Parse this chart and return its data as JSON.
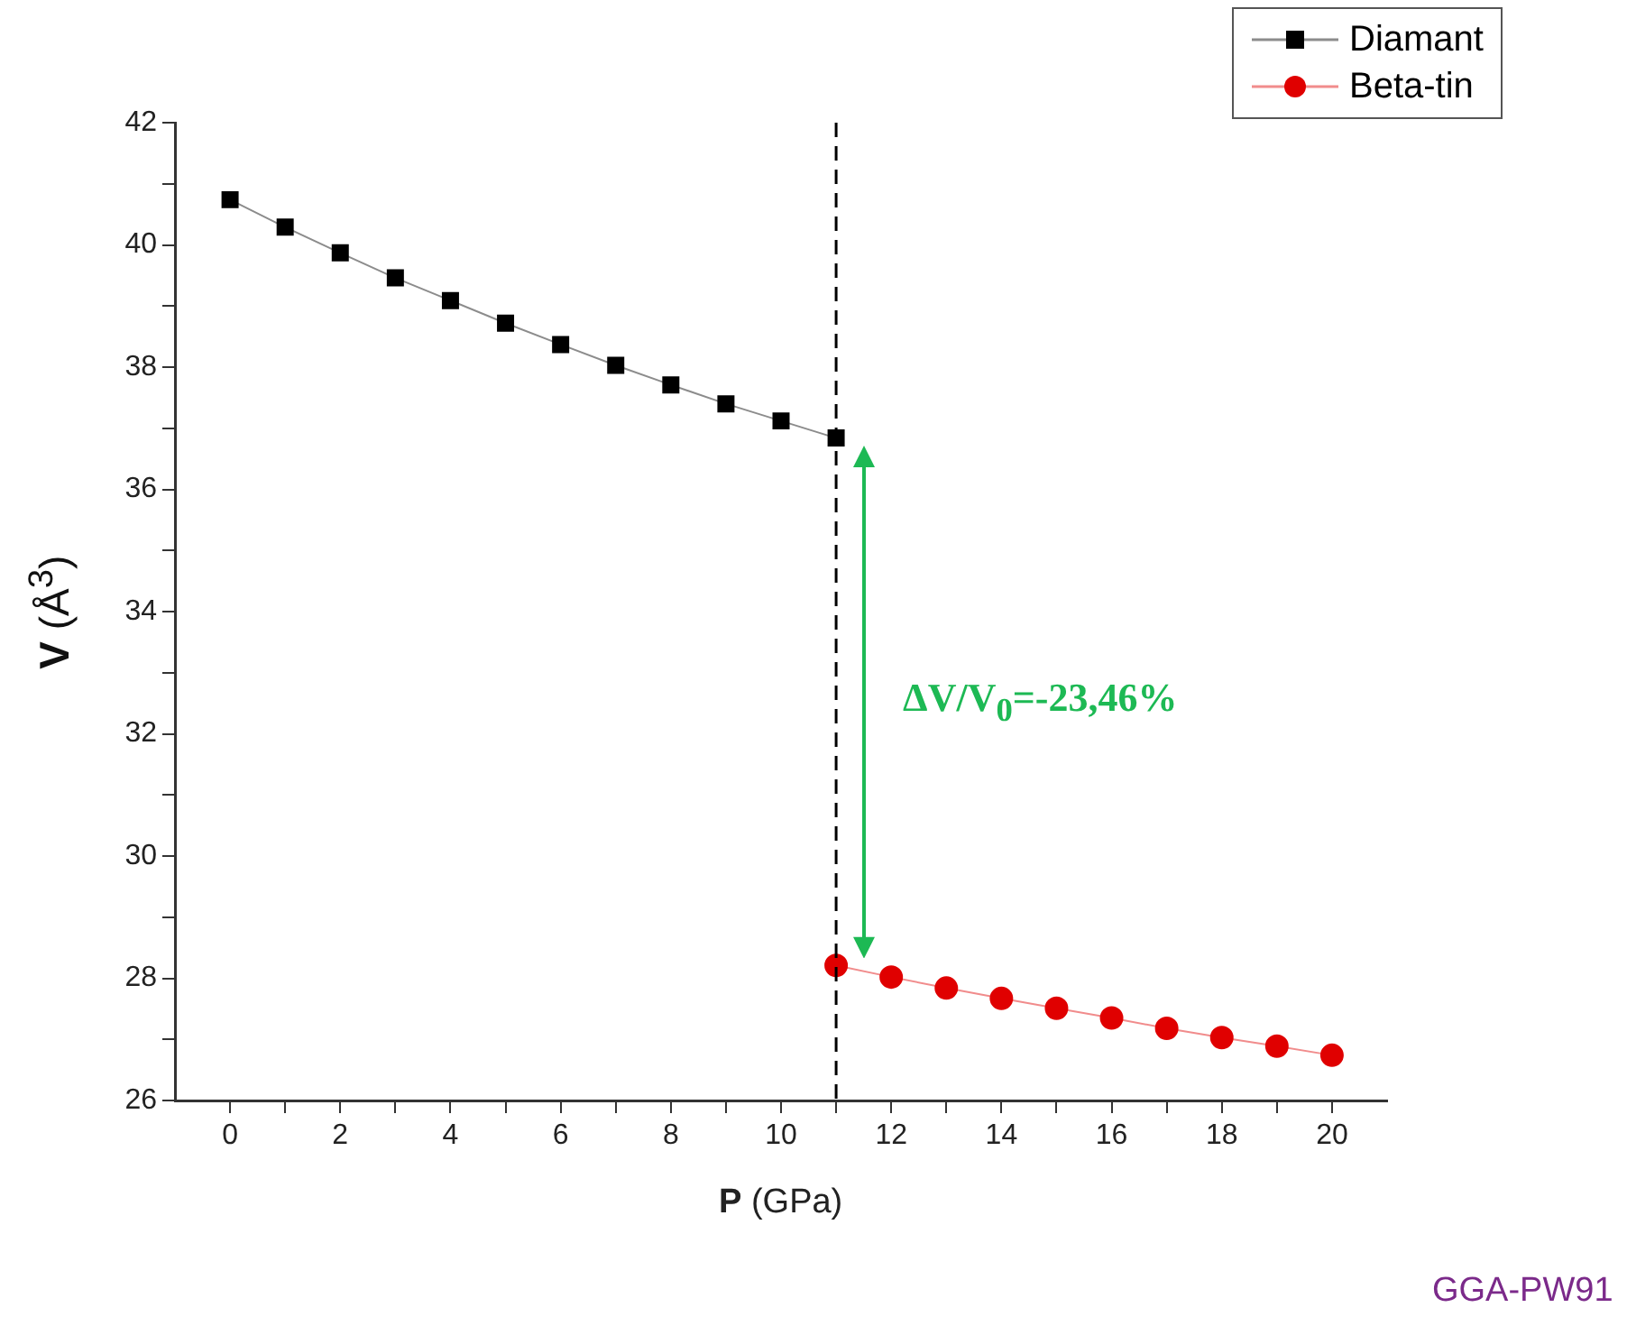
{
  "chart_data": {
    "type": "line",
    "xlabel": "P (GPa)",
    "ylabel": "V (Å$^{3}$)",
    "series": [
      {
        "name": "Diamant",
        "color": "#000000",
        "marker": "square",
        "x": [
          0,
          1,
          2,
          3,
          4,
          5,
          6,
          7,
          8,
          9,
          10,
          11
        ],
        "values": [
          40.74,
          40.29,
          39.87,
          39.46,
          39.09,
          38.72,
          38.37,
          38.03,
          37.71,
          37.4,
          37.12,
          36.84
        ]
      },
      {
        "name": "Beta-tin",
        "color": "#e00000",
        "marker": "circle",
        "x": [
          11,
          12,
          13,
          14,
          15,
          16,
          17,
          18,
          19,
          20
        ],
        "values": [
          28.21,
          28.02,
          27.84,
          27.67,
          27.51,
          27.35,
          27.18,
          27.03,
          26.89,
          26.74
        ]
      }
    ],
    "xlim": [
      -1,
      21
    ],
    "xticks": [
      0,
      {
        "value": 1,
        "label": null
      },
      2,
      {
        "value": 3,
        "label": null
      },
      4,
      {
        "value": 5,
        "label": null
      },
      6,
      {
        "value": 7,
        "label": null
      },
      8,
      {
        "value": 9,
        "label": null
      },
      10,
      {
        "value": 11,
        "label": null
      },
      12,
      {
        "value": 13,
        "label": null
      },
      14,
      {
        "value": 15,
        "label": null
      },
      16,
      {
        "value": 17,
        "label": null
      },
      18,
      {
        "value": 19,
        "label": null
      },
      20
    ],
    "ylim": [
      26,
      42
    ],
    "yticks": [
      26,
      {
        "value": 27,
        "label": null
      },
      28,
      {
        "value": 29,
        "label": null
      },
      30,
      {
        "value": 31,
        "label": null
      },
      32,
      {
        "value": 33,
        "label": null
      },
      34,
      {
        "value": 35,
        "label": null
      },
      36,
      {
        "value": 37,
        "label": null
      },
      38,
      {
        "value": 39,
        "label": null
      },
      40,
      {
        "value": 41,
        "label": null
      },
      42
    ],
    "ref_lines": [
      {
        "axis": "x",
        "value": 11,
        "color": "#000000",
        "line_style": "dashed"
      }
    ],
    "annotations": [
      "ΔV/V$_{0}$=-23,46%",
      "GGA-PW91"
    ],
    "grid": false,
    "legend": "top right",
    "line_style": "solid"
  }
}
